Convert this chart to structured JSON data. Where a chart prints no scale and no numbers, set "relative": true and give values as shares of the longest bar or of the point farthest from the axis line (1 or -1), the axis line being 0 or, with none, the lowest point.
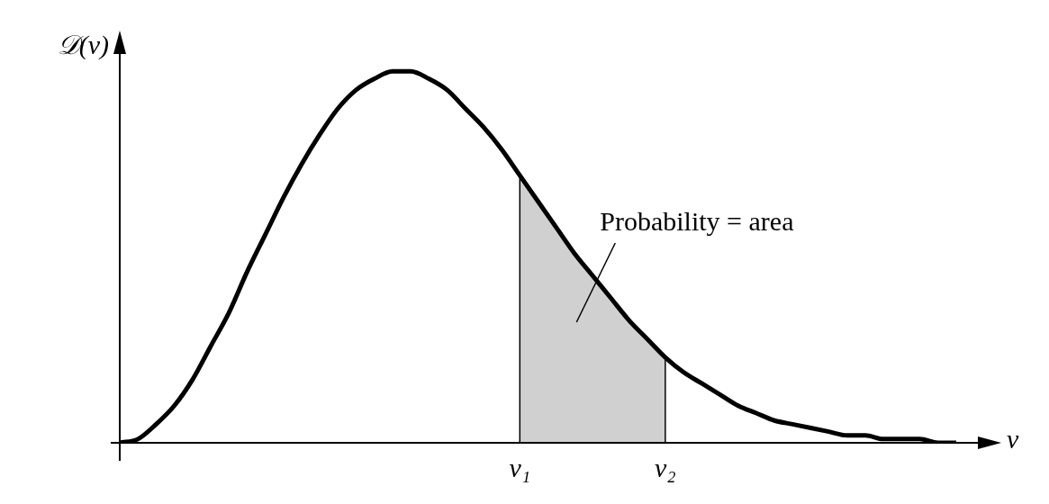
{
  "chart_data": {
    "type": "line",
    "relative": true,
    "xlabel": "v",
    "ylabel": "𝒟(v)",
    "categories": [
      null,
      null,
      null,
      null,
      null,
      null,
      null,
      null,
      null,
      null,
      null,
      null,
      null,
      null,
      null,
      null,
      null,
      null,
      null,
      null,
      null,
      null,
      "v₁",
      null,
      null,
      null,
      null,
      null,
      null,
      null,
      "v₂",
      null,
      null,
      null,
      null,
      null,
      null,
      null,
      null,
      null,
      null,
      null,
      null,
      null,
      null,
      null,
      null
    ],
    "series": [
      {
        "type": "area",
        "color": "#d0d0d0",
        "values": [
          null,
          null,
          null,
          null,
          null,
          null,
          null,
          null,
          null,
          null,
          null,
          null,
          null,
          null,
          null,
          null,
          null,
          null,
          null,
          null,
          null,
          null,
          0.72,
          0.65,
          0.58,
          0.51,
          0.45,
          0.39,
          0.33,
          0.28,
          0.23,
          null,
          null,
          null,
          null,
          null,
          null,
          null,
          null,
          null,
          null,
          null,
          null,
          null,
          null,
          null,
          null
        ]
      },
      {
        "color": "#000000",
        "values": [
          0,
          0.01,
          0.05,
          0.1,
          0.17,
          0.26,
          0.35,
          0.46,
          0.56,
          0.66,
          0.75,
          0.83,
          0.9,
          0.95,
          0.98,
          1,
          1,
          0.98,
          0.95,
          0.9,
          0.85,
          0.79,
          0.72,
          0.65,
          0.58,
          0.51,
          0.45,
          0.39,
          0.33,
          0.28,
          0.23,
          0.19,
          0.16,
          0.13,
          0.1,
          0.08,
          0.06,
          0.05,
          0.04,
          0.03,
          0.02,
          0.02,
          0.01,
          0.01,
          0.01,
          0,
          0
        ]
      }
    ],
    "ref_lines": [
      {
        "axis": "x",
        "value": "v₁",
        "color": "#000000"
      },
      {
        "axis": "x",
        "value": "v₂",
        "color": "#000000"
      }
    ],
    "marker": "none",
    "grid": false,
    "legend": false,
    "annotations": [
      "Probability = area"
    ]
  }
}
